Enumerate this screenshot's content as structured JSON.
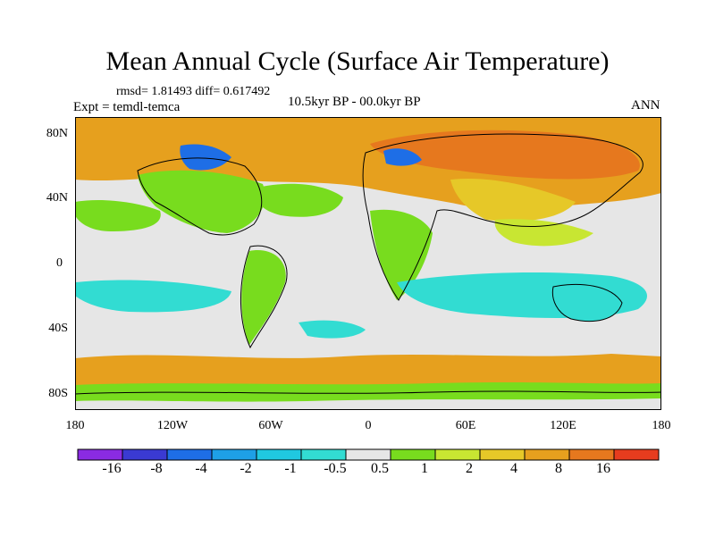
{
  "title": "Mean Annual Cycle (Surface Air Temperature)",
  "stats": "rmsd= 1.81493 diff= 0.617492",
  "experiment": "Expt = temdl-temca",
  "period": "10.5kyr BP - 00.0kyr BP",
  "season": "ANN",
  "y_ticks": [
    "80N",
    "40N",
    "0",
    "40S",
    "80S"
  ],
  "x_ticks": [
    "180",
    "120W",
    "60W",
    "0",
    "60E",
    "120E",
    "180"
  ],
  "colorbar": {
    "labels": [
      "-16",
      "-8",
      "-4",
      "-2",
      "-1",
      "-0.5",
      "0.5",
      "1",
      "2",
      "4",
      "8",
      "16"
    ],
    "colors": [
      "#8a2be2",
      "#3a3ad2",
      "#1e6ee6",
      "#1ea0e6",
      "#20c8e0",
      "#32dcd2",
      "#e6e6e6",
      "#78dc1e",
      "#c8e632",
      "#e6c828",
      "#e6a01e",
      "#e6781e",
      "#e63c1e"
    ]
  },
  "palette": {
    "ocean": "#e6e6e6",
    "warm": "#e6a01e",
    "hot": "#e6781e",
    "lightgreen": "#78dc1e",
    "yellowgreen": "#c8e632",
    "gold": "#e6c828",
    "cyan": "#32dcd2",
    "blue": "#1e6ee6",
    "coast": "#000000"
  }
}
